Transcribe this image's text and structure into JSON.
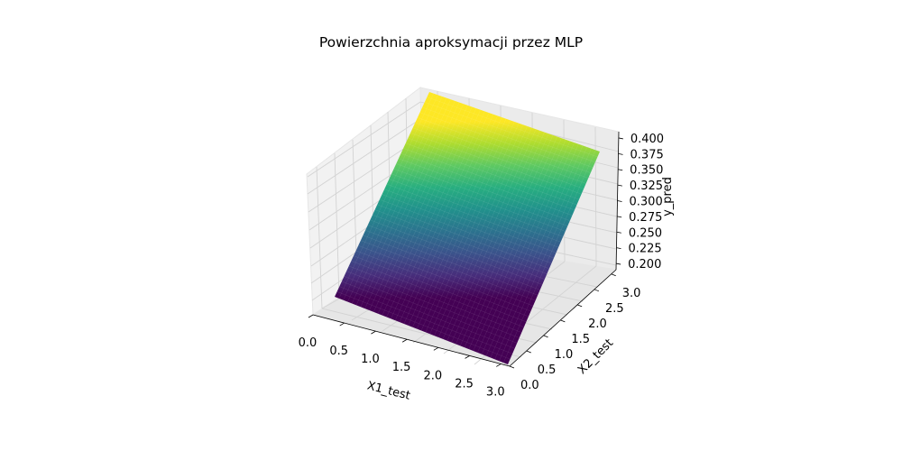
{
  "chart_data": {
    "type": "surface3d",
    "title": "Powierzchnia aproksymacji przez MLP",
    "xlabel": "X1_test",
    "ylabel": "X2_test",
    "zlabel": "y_pred",
    "xlim": [
      0,
      3.14
    ],
    "ylim": [
      0,
      3.14
    ],
    "zlim": [
      0.19,
      0.41
    ],
    "xticks": [
      "0.0",
      "0.5",
      "1.0",
      "1.5",
      "2.0",
      "2.5",
      "3.0"
    ],
    "yticks": [
      "0.0",
      "0.5",
      "1.0",
      "1.5",
      "2.0",
      "2.5",
      "3.0"
    ],
    "zticks": [
      "0.200",
      "0.225",
      "0.250",
      "0.275",
      "0.300",
      "0.325",
      "0.350",
      "0.375",
      "0.400"
    ],
    "colormap": "viridis",
    "grid": true,
    "surface_corners": [
      {
        "x": 0.0,
        "y": 0.0,
        "z": 0.19
      },
      {
        "x": 3.14,
        "y": 0.0,
        "z": 0.19
      },
      {
        "x": 0.0,
        "y": 3.14,
        "z": 0.41
      },
      {
        "x": 3.14,
        "y": 3.14,
        "z": 0.385
      }
    ],
    "colors": {
      "pane": "#f2f2f2",
      "pane_edge": "#e6e6e6",
      "grid": "#d3d3d3",
      "axis": "#000000"
    }
  }
}
